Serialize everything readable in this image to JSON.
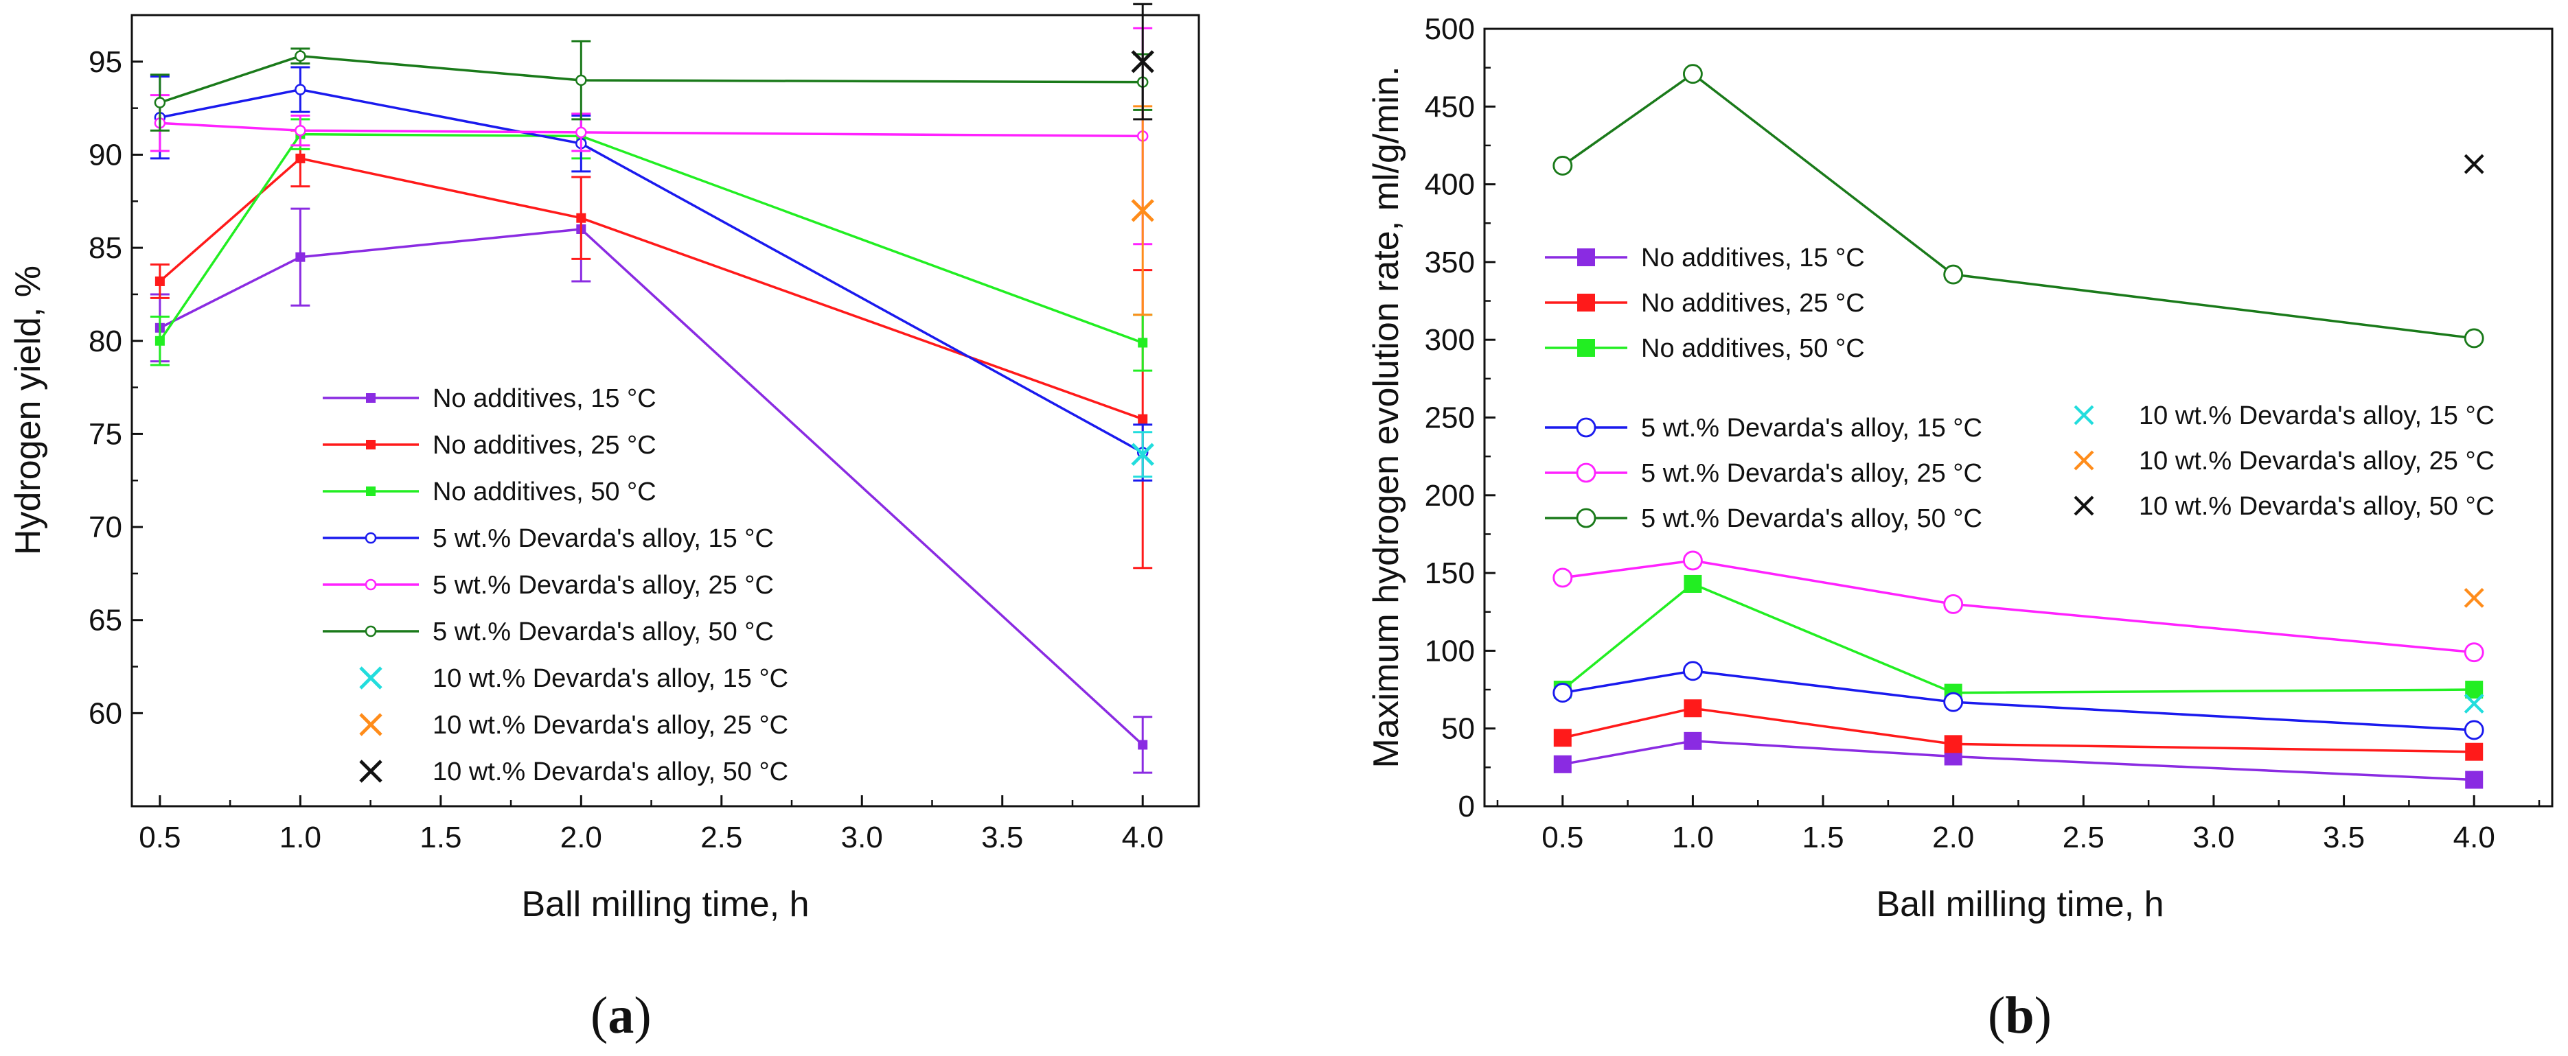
{
  "chart_data": [
    {
      "type": "line",
      "panel_label": "a",
      "xlabel": "Ball milling time, h",
      "ylabel": "Hydrogen yield, %",
      "xlim": [
        0.4,
        4.2
      ],
      "ylim": [
        55,
        97.5
      ],
      "xticks": [
        "0.5",
        "1.0",
        "1.5",
        "2.0",
        "2.5",
        "3.0",
        "3.5",
        "4.0"
      ],
      "yticks": [
        "60",
        "65",
        "70",
        "75",
        "80",
        "85",
        "90",
        "95"
      ],
      "legend_position": "center",
      "series": [
        {
          "name": "No additives, 15 °C",
          "color": "#8a2be2",
          "marker": "square",
          "size": "small",
          "line": true,
          "x": [
            0.5,
            1.0,
            2.0,
            4.0
          ],
          "y": [
            80.7,
            84.5,
            86.0,
            58.3
          ],
          "err": [
            1.8,
            2.6,
            2.8,
            1.5
          ]
        },
        {
          "name": "No additives, 25 °C",
          "color": "#ff1a1a",
          "marker": "square",
          "size": "small",
          "line": true,
          "x": [
            0.5,
            1.0,
            2.0,
            4.0
          ],
          "y": [
            83.2,
            89.8,
            86.6,
            75.8
          ],
          "err": [
            0.9,
            1.5,
            2.2,
            8.0
          ]
        },
        {
          "name": "No additives, 50 °C",
          "color": "#22ee22",
          "marker": "square",
          "size": "small",
          "line": true,
          "x": [
            0.5,
            1.0,
            2.0,
            4.0
          ],
          "y": [
            80.0,
            91.1,
            91.0,
            79.9
          ],
          "err": [
            1.3,
            0.8,
            1.2,
            1.5
          ]
        },
        {
          "name": "5 wt.% Devarda's alloy, 15 °C",
          "color": "#1a1aee",
          "marker": "circle",
          "size": "small",
          "line": true,
          "x": [
            0.5,
            1.0,
            2.0,
            4.0
          ],
          "y": [
            92.0,
            93.5,
            90.6,
            74.0
          ],
          "err": [
            2.2,
            1.2,
            1.5,
            1.5
          ]
        },
        {
          "name": "5 wt.% Devarda's alloy, 25 °C",
          "color": "#ff22ff",
          "marker": "circle",
          "size": "small",
          "line": true,
          "x": [
            0.5,
            1.0,
            2.0,
            4.0
          ],
          "y": [
            91.7,
            91.3,
            91.2,
            91.0
          ],
          "err": [
            1.5,
            0.8,
            1.0,
            5.8
          ]
        },
        {
          "name": "5 wt.% Devarda's alloy, 50 °C",
          "color": "#1a7a1a",
          "marker": "circle",
          "size": "small",
          "line": true,
          "x": [
            0.5,
            1.0,
            2.0,
            4.0
          ],
          "y": [
            92.8,
            95.3,
            94.0,
            93.9
          ],
          "err": [
            1.5,
            0.4,
            2.1,
            1.5
          ]
        },
        {
          "name": "10 wt.% Devarda's alloy, 15 °C",
          "color": "#22dddd",
          "marker": "cross",
          "size": "large",
          "line": false,
          "x": [
            4.0
          ],
          "y": [
            73.9
          ],
          "err": [
            1.2
          ]
        },
        {
          "name": "10 wt.% Devarda's alloy, 25 °C",
          "color": "#ff8c1a",
          "marker": "cross",
          "size": "large",
          "line": false,
          "x": [
            4.0
          ],
          "y": [
            87.0
          ],
          "err": [
            5.6
          ]
        },
        {
          "name": "10 wt.% Devarda's alloy, 50 °C",
          "color": "#111111",
          "marker": "cross",
          "size": "large",
          "line": false,
          "x": [
            4.0
          ],
          "y": [
            95.0
          ],
          "err": [
            3.1
          ]
        }
      ]
    },
    {
      "type": "line",
      "panel_label": "b",
      "xlabel": "Ball milling time, h",
      "ylabel": "Maximum hydrogen evolution rate, ml/g/min.",
      "xlim": [
        0.2,
        4.3
      ],
      "ylim": [
        0,
        500
      ],
      "xticks": [
        "0.5",
        "1.0",
        "1.5",
        "2.0",
        "2.5",
        "3.0",
        "3.5",
        "4.0"
      ],
      "yticks": [
        "0",
        "50",
        "100",
        "150",
        "200",
        "250",
        "300",
        "350",
        "400",
        "450",
        "500"
      ],
      "legend_position": "center-left (two columns)",
      "series": [
        {
          "name": "No additives, 15 °C",
          "color": "#8a2be2",
          "marker": "square",
          "size": "large",
          "line": true,
          "x": [
            0.5,
            1.0,
            2.0,
            4.0
          ],
          "y": [
            27,
            42,
            32,
            17
          ]
        },
        {
          "name": "No additives, 25 °C",
          "color": "#ff1a1a",
          "marker": "square",
          "size": "large",
          "line": true,
          "x": [
            0.5,
            1.0,
            2.0,
            4.0
          ],
          "y": [
            44,
            63,
            40,
            35
          ]
        },
        {
          "name": "No additives, 50 °C",
          "color": "#22ee22",
          "marker": "square",
          "size": "large",
          "line": true,
          "x": [
            0.5,
            1.0,
            2.0,
            4.0
          ],
          "y": [
            75,
            143,
            73,
            75
          ]
        },
        {
          "name": "5 wt.% Devarda's alloy, 15 °C",
          "color": "#1a1aee",
          "marker": "circle",
          "size": "large",
          "line": true,
          "x": [
            0.5,
            1.0,
            2.0,
            4.0
          ],
          "y": [
            73,
            87,
            67,
            49
          ]
        },
        {
          "name": "5 wt.% Devarda's alloy, 25 °C",
          "color": "#ff22ff",
          "marker": "circle",
          "size": "large",
          "line": true,
          "x": [
            0.5,
            1.0,
            2.0,
            4.0
          ],
          "y": [
            147,
            158,
            130,
            99
          ]
        },
        {
          "name": "5 wt.% Devarda's alloy, 50 °C",
          "color": "#1a7a1a",
          "marker": "circle",
          "size": "large",
          "line": true,
          "x": [
            0.5,
            1.0,
            2.0,
            4.0
          ],
          "y": [
            412,
            471,
            342,
            301
          ]
        },
        {
          "name": "10 wt.% Devarda's alloy, 15 °C",
          "color": "#22dddd",
          "marker": "cross",
          "size": "large",
          "line": false,
          "x": [
            4.0
          ],
          "y": [
            66
          ]
        },
        {
          "name": "10 wt.% Devarda's alloy, 25 °C",
          "color": "#ff8c1a",
          "marker": "cross",
          "size": "large",
          "line": false,
          "x": [
            4.0
          ],
          "y": [
            134
          ]
        },
        {
          "name": "10 wt.% Devarda's alloy, 50 °C",
          "color": "#111111",
          "marker": "cross",
          "size": "large",
          "line": false,
          "x": [
            4.0
          ],
          "y": [
            413
          ]
        }
      ]
    }
  ]
}
